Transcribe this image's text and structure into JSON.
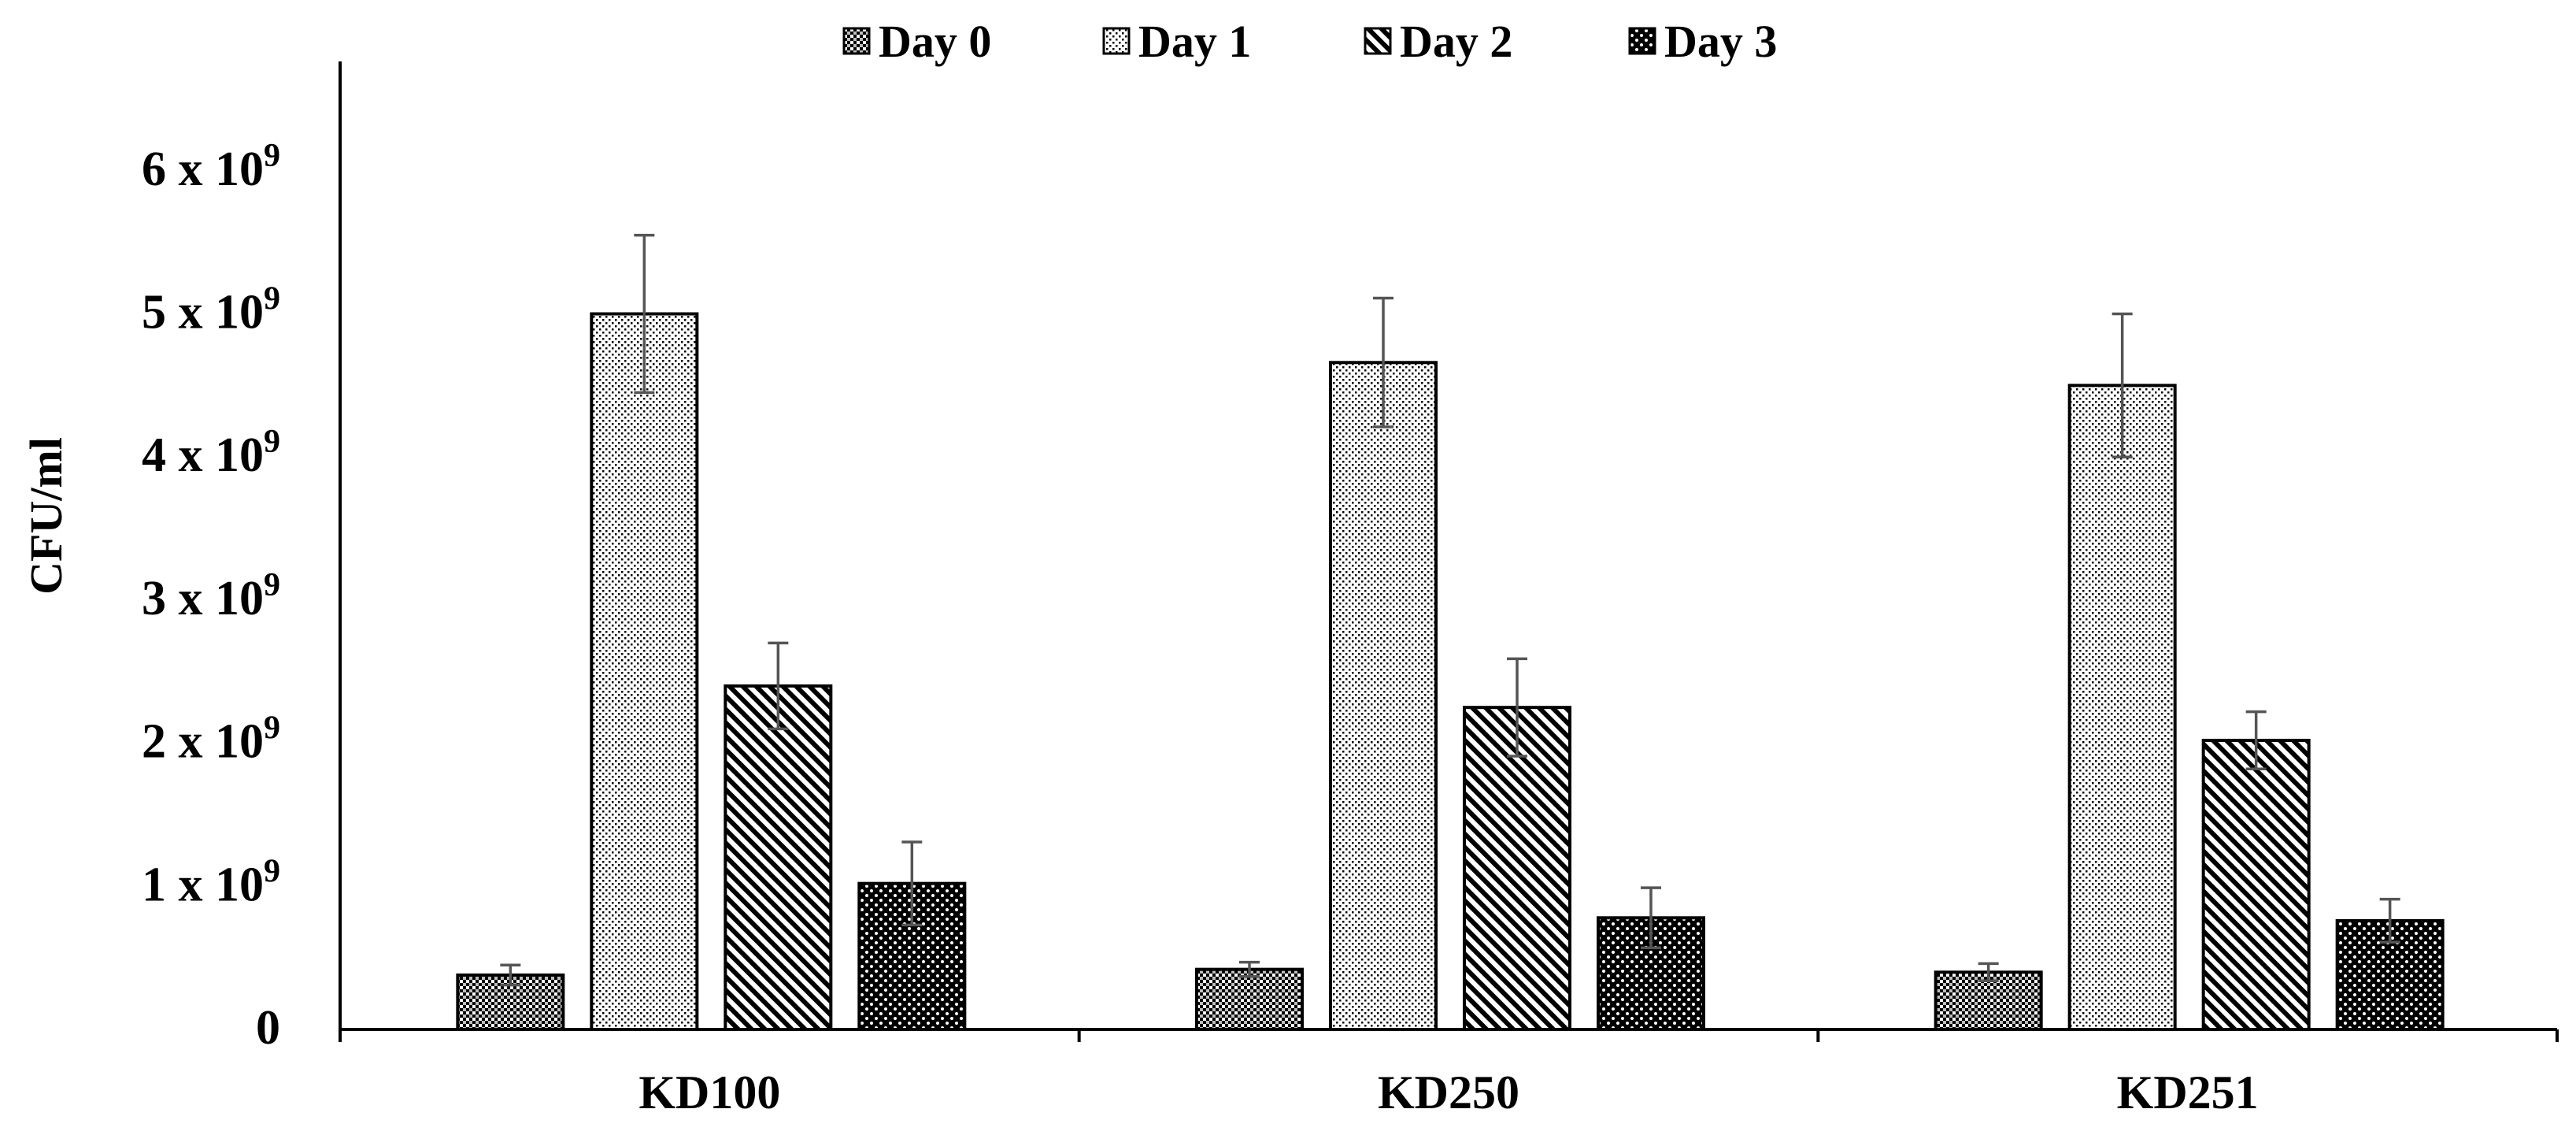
{
  "chart_data": {
    "type": "bar",
    "title": "",
    "xlabel": "",
    "ylabel": "CFU/ml",
    "ylim": [
      0,
      6.7
    ],
    "y_unit_multiplier": "x 10^9",
    "y_ticks": [
      {
        "value": 0,
        "base": "0",
        "exp": ""
      },
      {
        "value": 1,
        "base": "1 x 10",
        "exp": "9"
      },
      {
        "value": 2,
        "base": "2 x 10",
        "exp": "9"
      },
      {
        "value": 3,
        "base": "3 x 10",
        "exp": "9"
      },
      {
        "value": 4,
        "base": "4 x 10",
        "exp": "9"
      },
      {
        "value": 5,
        "base": "5 x 10",
        "exp": "9"
      },
      {
        "value": 6,
        "base": "6 x 10",
        "exp": "9"
      }
    ],
    "categories": [
      "KD100",
      "KD250",
      "KD251"
    ],
    "legend_position": "top-center",
    "grid": false,
    "series": [
      {
        "name": "Day 0",
        "pattern": "fine-dots",
        "values": [
          0.38,
          0.42,
          0.4
        ],
        "errors": [
          0.07,
          0.05,
          0.06
        ]
      },
      {
        "name": "Day 1",
        "pattern": "sparse-dots",
        "values": [
          5.0,
          4.66,
          4.5
        ],
        "errors": [
          0.55,
          0.45,
          0.5
        ]
      },
      {
        "name": "Day 2",
        "pattern": "diagonal-hatch",
        "values": [
          2.4,
          2.25,
          2.02
        ],
        "errors": [
          0.3,
          0.34,
          0.2
        ]
      },
      {
        "name": "Day 3",
        "pattern": "dense-checker",
        "values": [
          1.02,
          0.78,
          0.76
        ],
        "errors": [
          0.29,
          0.21,
          0.15
        ]
      }
    ]
  }
}
